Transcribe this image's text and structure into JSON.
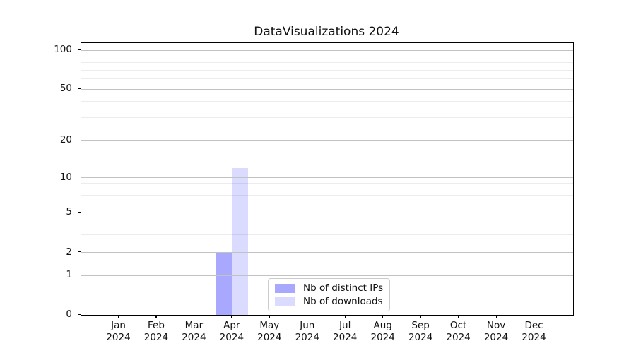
{
  "title": "DataVisualizations 2024",
  "chart_data": {
    "type": "bar",
    "title": "DataVisualizations 2024",
    "categories": [
      "Jan",
      "Feb",
      "Mar",
      "Apr",
      "May",
      "Jun",
      "Jul",
      "Aug",
      "Sep",
      "Oct",
      "Nov",
      "Dec"
    ],
    "category_year": "2024",
    "series": [
      {
        "name": "Nb of distinct IPs",
        "color": "rgba(0,0,255,0.34)",
        "values": [
          0,
          0,
          0,
          2,
          0,
          0,
          0,
          0,
          0,
          0,
          0,
          0
        ]
      },
      {
        "name": "Nb of downloads",
        "color": "rgba(0,0,255,0.14)",
        "values": [
          0,
          0,
          0,
          12,
          0,
          0,
          0,
          0,
          0,
          0,
          0,
          0
        ]
      }
    ],
    "yscale": "symlog",
    "yticks": [
      0,
      1,
      2,
      5,
      10,
      20,
      50,
      100
    ],
    "minor_yticks": [
      3,
      4,
      6,
      7,
      8,
      9,
      30,
      40,
      60,
      70,
      80,
      90
    ],
    "ylim": [
      0,
      110
    ],
    "xlabel": "",
    "ylabel": "",
    "grid": "horizontal major+minor",
    "legend_position": "lower center",
    "colors": {
      "major_grid": "#c2c2c2",
      "minor_grid": "#ececec",
      "spine": "#000000",
      "bar_dark": "#aaaaf6",
      "bar_light": "#dcdcf8"
    }
  }
}
